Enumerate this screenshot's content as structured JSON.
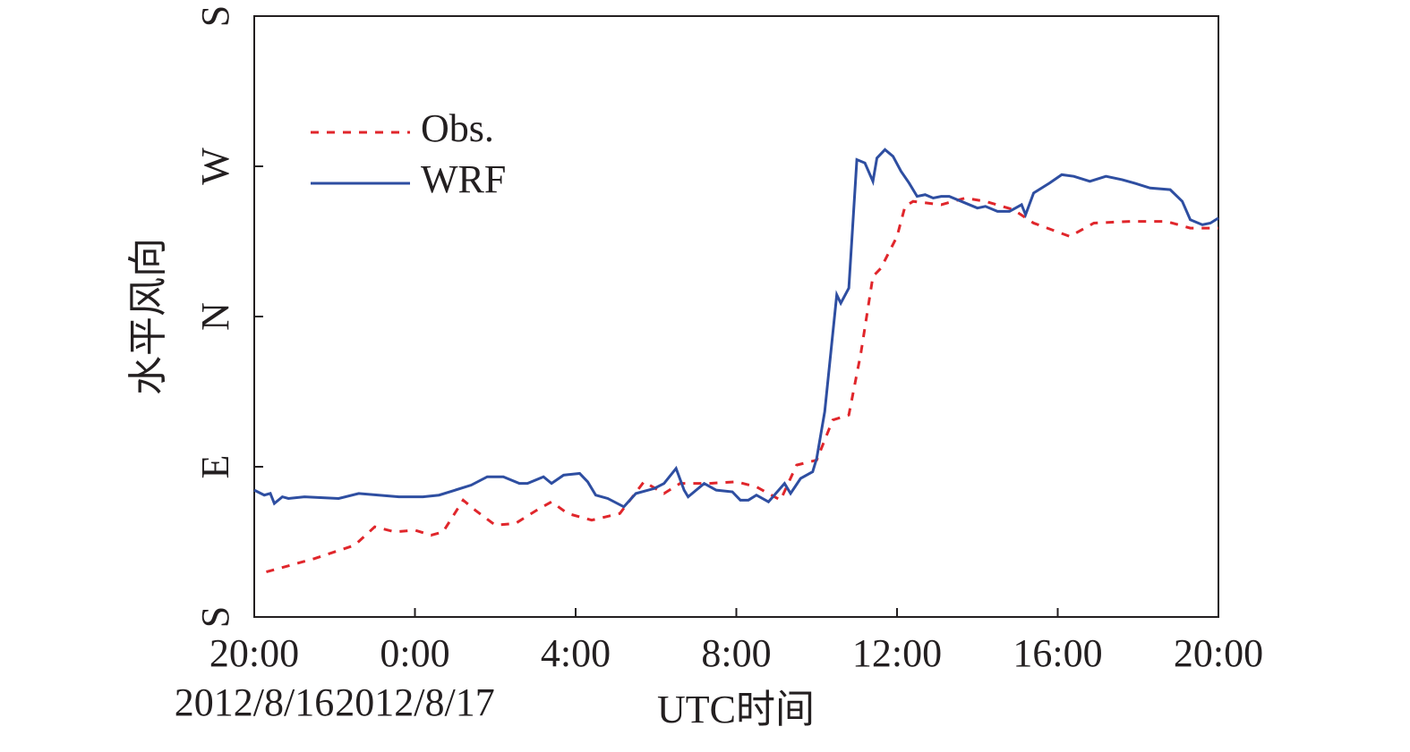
{
  "chart_data": {
    "type": "line",
    "ylabel": "水平风向",
    "xlabel": "UTC时间",
    "xlim": [
      0,
      24
    ],
    "xticks": [
      {
        "value": 0,
        "label": "20:00"
      },
      {
        "value": 4,
        "label": "0:00"
      },
      {
        "value": 8,
        "label": "4:00"
      },
      {
        "value": 12,
        "label": "8:00"
      },
      {
        "value": 16,
        "label": "12:00"
      },
      {
        "value": 20,
        "label": "16:00"
      },
      {
        "value": 24,
        "label": "20:00"
      }
    ],
    "date_labels": [
      {
        "value": 0,
        "label": "2012/8/16"
      },
      {
        "value": 4,
        "label": "2012/8/17"
      }
    ],
    "ylim": [
      0,
      360
    ],
    "yticks": [
      {
        "value": 0,
        "label": "S"
      },
      {
        "value": 90,
        "label": "E"
      },
      {
        "value": 180,
        "label": "N"
      },
      {
        "value": 270,
        "label": "W"
      },
      {
        "value": 360,
        "label": "S"
      }
    ],
    "legend": "upper-left",
    "series": [
      {
        "name": "Obs.",
        "color": "#e0262b",
        "dashed": true,
        "x": [
          0.3,
          1.5,
          2.5,
          3,
          3.5,
          4,
          4.4,
          4.7,
          5.2,
          5.5,
          6,
          6.5,
          7.1,
          7.4,
          7.8,
          8.4,
          9.1,
          9.7,
          10.2,
          10.6,
          11.3,
          12,
          12.5,
          13.1,
          13.5,
          14,
          14.4,
          14.8,
          15.1,
          15.4,
          15.6,
          16,
          16.2,
          16.4,
          17.1,
          17.7,
          18.2,
          18.9,
          19.4,
          20.3,
          20.9,
          21.8,
          22.7,
          23.3,
          24
        ],
        "values": [
          27,
          35,
          43,
          54,
          51,
          52,
          49,
          51,
          70,
          64,
          55,
          56,
          65,
          69,
          62,
          58,
          62,
          81,
          74,
          80,
          80,
          81,
          78,
          70,
          91,
          94,
          118,
          121,
          158,
          204,
          209,
          228,
          246,
          249,
          247,
          251,
          249,
          244,
          236,
          228,
          236,
          237,
          237,
          233,
          233
        ]
      },
      {
        "name": "WRF",
        "color": "#2e4ea1",
        "dashed": false,
        "x": [
          0,
          0.25,
          0.4,
          0.5,
          0.7,
          0.85,
          1.25,
          2.1,
          2.6,
          3.6,
          4.2,
          4.6,
          5,
          5.4,
          5.8,
          6.2,
          6.6,
          6.8,
          7.2,
          7.4,
          7.7,
          8.1,
          8.3,
          8.5,
          8.8,
          9.2,
          9.5,
          9.96,
          10.2,
          10.5,
          10.7,
          10.8,
          11.2,
          11.5,
          11.9,
          12.1,
          12.3,
          12.5,
          12.8,
          13.2,
          13.35,
          13.6,
          13.9,
          14,
          14.2,
          14.5,
          14.6,
          14.8,
          15,
          15.2,
          15.4,
          15.5,
          15.7,
          15.9,
          16.1,
          16.3,
          16.5,
          16.7,
          16.9,
          17.1,
          17.3,
          17.7,
          18,
          18.2,
          18.5,
          18.8,
          19.1,
          19.2,
          19.4,
          19.8,
          20.1,
          20.4,
          20.8,
          21.2,
          21.6,
          21.9,
          22.3,
          22.8,
          23.1,
          23.3,
          23.6,
          23.8,
          24
        ],
        "values": [
          76,
          73,
          74,
          68,
          72,
          71,
          72,
          71,
          74,
          72,
          72,
          73,
          76,
          79,
          84,
          84,
          80,
          80,
          84,
          80,
          85,
          86,
          81,
          73,
          71,
          66,
          74,
          77,
          80,
          89,
          76,
          72,
          80,
          76,
          75,
          70,
          70,
          73,
          69,
          80,
          74,
          83,
          87,
          95,
          123,
          193,
          188,
          197,
          274,
          272,
          261,
          275,
          280,
          276,
          267,
          260,
          252,
          253,
          251,
          252,
          252,
          248,
          245,
          246,
          243,
          243,
          247,
          241,
          254,
          260,
          265,
          264,
          261,
          264,
          262,
          260,
          257,
          256,
          249,
          238,
          235,
          236,
          239
        ]
      }
    ]
  }
}
